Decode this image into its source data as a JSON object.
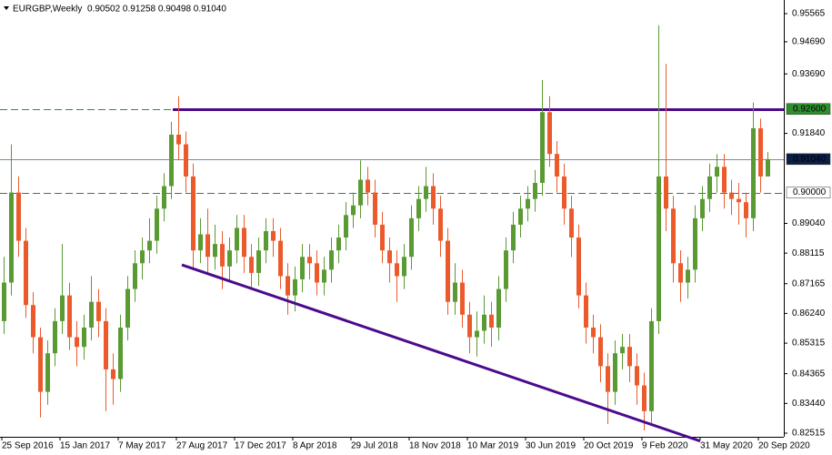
{
  "chart_data": {
    "type": "candlestick",
    "title": "EURGBP,Weekly",
    "quote": "0.90502 0.91258 0.90498 0.91040",
    "up_color": "#5a9a32",
    "down_color": "#ec5a2c",
    "ylim": [
      0.82402,
      0.95876
    ],
    "yticks": [
      {
        "value": 0.95565,
        "label": "0.95565"
      },
      {
        "value": 0.9469,
        "label": "0.94690"
      },
      {
        "value": 0.9369,
        "label": "0.93690"
      },
      {
        "value": 0.9184,
        "label": "0.91840"
      },
      {
        "value": 0.8904,
        "label": "0.89040"
      },
      {
        "value": 0.88115,
        "label": "0.88115"
      },
      {
        "value": 0.87165,
        "label": "0.87165"
      },
      {
        "value": 0.8624,
        "label": "0.86240"
      },
      {
        "value": 0.85315,
        "label": "0.85315"
      },
      {
        "value": 0.84365,
        "label": "0.84365"
      },
      {
        "value": 0.8344,
        "label": "0.83440"
      },
      {
        "value": 0.82515,
        "label": "0.82515"
      }
    ],
    "levels": [
      {
        "value": 0.926,
        "label": "0.92600",
        "color": "#4b0a8c",
        "label_bg": "#2f8f2f",
        "label_color": "#ffffff",
        "style": "solid"
      },
      {
        "value": 0.9104,
        "label": "0.91040",
        "color": "#7a8aa0",
        "label_bg": "#0b1e46",
        "label_color": "#ffffff",
        "style": "thin"
      },
      {
        "value": 0.9,
        "label": "0.90000",
        "color": "#556b55",
        "label_bg": "#ffffff",
        "label_color": "#000000",
        "style": "dashed"
      }
    ],
    "trendline": {
      "color": "#4b0a8c",
      "start": 0.8775,
      "end": 0.8227
    },
    "categories": [
      "25 Sep 2016",
      null,
      null,
      null,
      null,
      null,
      null,
      null,
      "15 Jan 2017",
      null,
      null,
      null,
      null,
      null,
      null,
      null,
      "7 May 2017",
      null,
      null,
      null,
      null,
      null,
      null,
      null,
      "27 Aug 2017",
      null,
      null,
      null,
      null,
      null,
      null,
      null,
      "17 Dec 2017",
      null,
      null,
      null,
      null,
      null,
      null,
      null,
      "8 Apr 2018",
      null,
      null,
      null,
      null,
      null,
      null,
      null,
      "29 Jul 2018",
      null,
      null,
      null,
      null,
      null,
      null,
      null,
      "18 Nov 2018",
      null,
      null,
      null,
      null,
      null,
      null,
      null,
      "10 Mar 2019",
      null,
      null,
      null,
      null,
      null,
      null,
      null,
      "30 Jun 2019",
      null,
      null,
      null,
      null,
      null,
      null,
      null,
      "20 Oct 2019",
      null,
      null,
      null,
      null,
      null,
      null,
      null,
      "9 Feb 2020",
      null,
      null,
      null,
      null,
      null,
      null,
      null,
      "31 May 2020",
      null,
      null,
      null,
      null,
      null,
      null,
      null,
      "20 Sep 2020",
      null
    ],
    "candles": [
      [
        0.86,
        0.88,
        0.856,
        0.872
      ],
      [
        0.872,
        0.915,
        0.868,
        0.9
      ],
      [
        0.9,
        0.905,
        0.88,
        0.885
      ],
      [
        0.885,
        0.889,
        0.861,
        0.865
      ],
      [
        0.865,
        0.869,
        0.85,
        0.855
      ],
      [
        0.855,
        0.858,
        0.83,
        0.838
      ],
      [
        0.838,
        0.854,
        0.834,
        0.85
      ],
      [
        0.85,
        0.864,
        0.846,
        0.86
      ],
      [
        0.86,
        0.884,
        0.856,
        0.868
      ],
      [
        0.868,
        0.872,
        0.851,
        0.855
      ],
      [
        0.855,
        0.86,
        0.846,
        0.852
      ],
      [
        0.852,
        0.862,
        0.848,
        0.858
      ],
      [
        0.858,
        0.874,
        0.854,
        0.866
      ],
      [
        0.866,
        0.87,
        0.855,
        0.86
      ],
      [
        0.86,
        0.864,
        0.832,
        0.845
      ],
      [
        0.845,
        0.85,
        0.834,
        0.842
      ],
      [
        0.842,
        0.862,
        0.838,
        0.858
      ],
      [
        0.858,
        0.874,
        0.854,
        0.87
      ],
      [
        0.87,
        0.882,
        0.866,
        0.878
      ],
      [
        0.878,
        0.886,
        0.873,
        0.882
      ],
      [
        0.882,
        0.892,
        0.878,
        0.885
      ],
      [
        0.885,
        0.899,
        0.881,
        0.895
      ],
      [
        0.895,
        0.906,
        0.891,
        0.902
      ],
      [
        0.902,
        0.922,
        0.898,
        0.918
      ],
      [
        0.918,
        0.93,
        0.91,
        0.915
      ],
      [
        0.915,
        0.919,
        0.9,
        0.905
      ],
      [
        0.905,
        0.909,
        0.876,
        0.882
      ],
      [
        0.882,
        0.892,
        0.878,
        0.887
      ],
      [
        0.887,
        0.895,
        0.875,
        0.88
      ],
      [
        0.88,
        0.89,
        0.876,
        0.884
      ],
      [
        0.884,
        0.888,
        0.87,
        0.877
      ],
      [
        0.877,
        0.886,
        0.872,
        0.882
      ],
      [
        0.882,
        0.893,
        0.878,
        0.889
      ],
      [
        0.889,
        0.893,
        0.875,
        0.88
      ],
      [
        0.88,
        0.884,
        0.87,
        0.875
      ],
      [
        0.875,
        0.886,
        0.871,
        0.882
      ],
      [
        0.882,
        0.892,
        0.878,
        0.888
      ],
      [
        0.888,
        0.892,
        0.88,
        0.885
      ],
      [
        0.885,
        0.889,
        0.87,
        0.874
      ],
      [
        0.874,
        0.878,
        0.862,
        0.868
      ],
      [
        0.868,
        0.877,
        0.863,
        0.873
      ],
      [
        0.873,
        0.884,
        0.869,
        0.88
      ],
      [
        0.88,
        0.884,
        0.873,
        0.878
      ],
      [
        0.878,
        0.882,
        0.868,
        0.872
      ],
      [
        0.872,
        0.88,
        0.868,
        0.876
      ],
      [
        0.876,
        0.886,
        0.872,
        0.882
      ],
      [
        0.882,
        0.89,
        0.878,
        0.886
      ],
      [
        0.886,
        0.897,
        0.882,
        0.893
      ],
      [
        0.893,
        0.9,
        0.889,
        0.896
      ],
      [
        0.896,
        0.91,
        0.892,
        0.904
      ],
      [
        0.904,
        0.908,
        0.896,
        0.9
      ],
      [
        0.9,
        0.904,
        0.886,
        0.89
      ],
      [
        0.89,
        0.894,
        0.878,
        0.882
      ],
      [
        0.882,
        0.886,
        0.872,
        0.878
      ],
      [
        0.878,
        0.882,
        0.866,
        0.874
      ],
      [
        0.874,
        0.884,
        0.87,
        0.88
      ],
      [
        0.88,
        0.896,
        0.876,
        0.892
      ],
      [
        0.892,
        0.902,
        0.888,
        0.898
      ],
      [
        0.898,
        0.908,
        0.894,
        0.902
      ],
      [
        0.902,
        0.906,
        0.89,
        0.895
      ],
      [
        0.895,
        0.899,
        0.88,
        0.885
      ],
      [
        0.885,
        0.889,
        0.862,
        0.866
      ],
      [
        0.866,
        0.878,
        0.862,
        0.872
      ],
      [
        0.872,
        0.876,
        0.858,
        0.862
      ],
      [
        0.862,
        0.866,
        0.85,
        0.855
      ],
      [
        0.855,
        0.863,
        0.849,
        0.857
      ],
      [
        0.857,
        0.868,
        0.853,
        0.862
      ],
      [
        0.862,
        0.866,
        0.852,
        0.858
      ],
      [
        0.858,
        0.874,
        0.854,
        0.87
      ],
      [
        0.87,
        0.886,
        0.866,
        0.882
      ],
      [
        0.882,
        0.894,
        0.878,
        0.89
      ],
      [
        0.89,
        0.899,
        0.886,
        0.895
      ],
      [
        0.895,
        0.902,
        0.891,
        0.898
      ],
      [
        0.898,
        0.907,
        0.894,
        0.903
      ],
      [
        0.903,
        0.935,
        0.899,
        0.925
      ],
      [
        0.925,
        0.93,
        0.908,
        0.912
      ],
      [
        0.912,
        0.916,
        0.9,
        0.905
      ],
      [
        0.905,
        0.909,
        0.89,
        0.895
      ],
      [
        0.895,
        0.899,
        0.88,
        0.886
      ],
      [
        0.886,
        0.89,
        0.864,
        0.868
      ],
      [
        0.868,
        0.872,
        0.853,
        0.858
      ],
      [
        0.858,
        0.862,
        0.85,
        0.855
      ],
      [
        0.855,
        0.859,
        0.841,
        0.846
      ],
      [
        0.846,
        0.85,
        0.828,
        0.838
      ],
      [
        0.838,
        0.854,
        0.834,
        0.85
      ],
      [
        0.85,
        0.856,
        0.845,
        0.852
      ],
      [
        0.852,
        0.856,
        0.841,
        0.846
      ],
      [
        0.846,
        0.85,
        0.834,
        0.84
      ],
      [
        0.84,
        0.844,
        0.826,
        0.832
      ],
      [
        0.832,
        0.864,
        0.828,
        0.86
      ],
      [
        0.86,
        0.952,
        0.856,
        0.905
      ],
      [
        0.905,
        0.94,
        0.888,
        0.895
      ],
      [
        0.895,
        0.899,
        0.872,
        0.878
      ],
      [
        0.878,
        0.882,
        0.866,
        0.872
      ],
      [
        0.872,
        0.88,
        0.867,
        0.876
      ],
      [
        0.876,
        0.896,
        0.872,
        0.892
      ],
      [
        0.892,
        0.902,
        0.888,
        0.898
      ],
      [
        0.898,
        0.909,
        0.894,
        0.905
      ],
      [
        0.905,
        0.912,
        0.9,
        0.908
      ],
      [
        0.908,
        0.912,
        0.895,
        0.9
      ],
      [
        0.9,
        0.904,
        0.893,
        0.898
      ],
      [
        0.898,
        0.903,
        0.89,
        0.897
      ],
      [
        0.897,
        0.9,
        0.886,
        0.892
      ],
      [
        0.892,
        0.928,
        0.888,
        0.92
      ],
      [
        0.92,
        0.923,
        0.9,
        0.905
      ],
      [
        0.90502,
        0.91258,
        0.90498,
        0.9104
      ]
    ]
  }
}
